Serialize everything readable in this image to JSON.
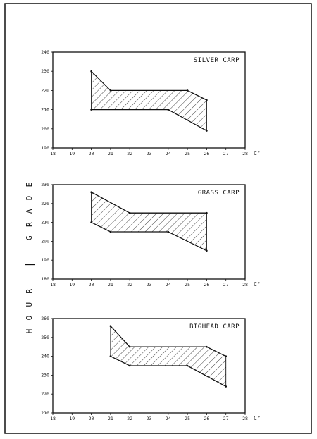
{
  "ylabel": "HOUR — GRADE",
  "chart_data": [
    {
      "type": "area",
      "title": "SILVER CARP",
      "x_unit": "C°",
      "xlim": [
        18,
        28
      ],
      "ylim": [
        190,
        240
      ],
      "x_ticks": [
        "18",
        "19",
        "20",
        "21",
        "22",
        "23",
        "24",
        "25",
        "26",
        "27",
        "28"
      ],
      "y_ticks": [
        "190",
        "200",
        "210",
        "220",
        "230",
        "240"
      ],
      "series": [
        {
          "x": [
            20,
            21,
            25,
            26
          ],
          "y": [
            230,
            220,
            220,
            215
          ]
        },
        {
          "x": [
            20,
            24,
            26
          ],
          "y": [
            210,
            210,
            199
          ]
        }
      ],
      "hatched_band": true
    },
    {
      "type": "area",
      "title": "GRASS CARP",
      "x_unit": "C°",
      "xlim": [
        18,
        28
      ],
      "ylim": [
        180,
        230
      ],
      "x_ticks": [
        "18",
        "19",
        "20",
        "21",
        "22",
        "23",
        "24",
        "25",
        "26",
        "27",
        "28"
      ],
      "y_ticks": [
        "180",
        "190",
        "200",
        "210",
        "220",
        "230"
      ],
      "series": [
        {
          "x": [
            20,
            22,
            26
          ],
          "y": [
            226,
            215,
            215
          ]
        },
        {
          "x": [
            20,
            21,
            24,
            26
          ],
          "y": [
            210,
            205,
            205,
            195
          ]
        }
      ],
      "hatched_band": true
    },
    {
      "type": "area",
      "title": "BIGHEAD CARP",
      "x_unit": "C°",
      "xlim": [
        18,
        28
      ],
      "ylim": [
        210,
        260
      ],
      "x_ticks": [
        "18",
        "19",
        "20",
        "21",
        "22",
        "23",
        "24",
        "25",
        "26",
        "27",
        "28"
      ],
      "y_ticks": [
        "210",
        "220",
        "230",
        "240",
        "250",
        "260"
      ],
      "series": [
        {
          "x": [
            21,
            22,
            26,
            27
          ],
          "y": [
            256,
            245,
            245,
            240
          ]
        },
        {
          "x": [
            21,
            22,
            25,
            27
          ],
          "y": [
            240,
            235,
            235,
            224
          ]
        }
      ],
      "hatched_band": true
    }
  ]
}
